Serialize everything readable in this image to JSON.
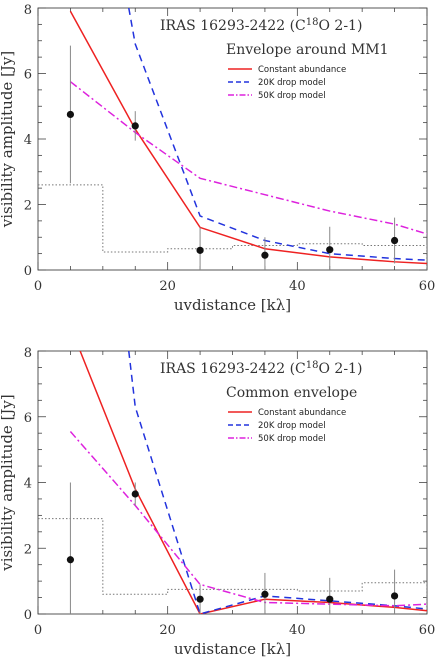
{
  "chart_data": [
    {
      "type": "line",
      "title": "IRAS 16293-2422 (C18O 2-1)",
      "title_parts": {
        "before": "IRAS 16293-2422 (C",
        "sup": "18",
        "after": "O 2-1)"
      },
      "subtitle": "Envelope around MM1",
      "xlabel": "uvdistance [kλ]",
      "ylabel": "visibility amplitude [Jy]",
      "xlim": [
        0,
        60
      ],
      "ylim": [
        0,
        8
      ],
      "xticks": [
        "0",
        "20",
        "40",
        "60"
      ],
      "yticks": [
        "0",
        "2",
        "4",
        "6",
        "8"
      ],
      "legend_position": "top-right",
      "observations": {
        "x": [
          5,
          15,
          25,
          35,
          45,
          55
        ],
        "y": [
          4.75,
          4.4,
          0.6,
          0.45,
          0.62,
          0.9
        ],
        "yerr": [
          2.1,
          0.45,
          0.7,
          0.55,
          0.7,
          0.7
        ]
      },
      "noise_histogram": {
        "edges": [
          0,
          10,
          20,
          30,
          40,
          50,
          60
        ],
        "values": [
          2.6,
          0.55,
          0.65,
          0.75,
          0.8,
          0.75
        ]
      },
      "series": [
        {
          "name": "Constant abundance",
          "color": "#ee2222",
          "dash": "solid",
          "x": [
            5,
            15,
            25,
            35,
            45,
            55,
            60
          ],
          "y": [
            7.9,
            4.3,
            1.3,
            0.65,
            0.4,
            0.25,
            0.2
          ]
        },
        {
          "name": "20K drop model",
          "color": "#2233dd",
          "dash": "dash",
          "x": [
            14,
            15,
            25,
            35,
            45,
            55,
            60
          ],
          "y": [
            8.0,
            6.9,
            1.65,
            0.9,
            0.5,
            0.35,
            0.3
          ]
        },
        {
          "name": "50K drop model",
          "color": "#dd22dd",
          "dash": "dashdot",
          "x": [
            5,
            15,
            25,
            35,
            45,
            55,
            60
          ],
          "y": [
            5.75,
            4.2,
            2.8,
            2.3,
            1.8,
            1.4,
            1.1
          ]
        }
      ]
    },
    {
      "type": "line",
      "title": "IRAS 16293-2422 (C18O 2-1)",
      "title_parts": {
        "before": "IRAS 16293-2422 (C",
        "sup": "18",
        "after": "O 2-1)"
      },
      "subtitle": "Common envelope",
      "xlabel": "uvdistance [kλ]",
      "ylabel": "visibility amplitude [Jy]",
      "xlim": [
        0,
        60
      ],
      "ylim": [
        0,
        8
      ],
      "xticks": [
        "0",
        "20",
        "40",
        "60"
      ],
      "yticks": [
        "0",
        "2",
        "4",
        "6",
        "8"
      ],
      "legend_position": "top-right",
      "observations": {
        "x": [
          5,
          15,
          25,
          35,
          45,
          55
        ],
        "y": [
          1.65,
          3.65,
          0.45,
          0.6,
          0.45,
          0.55
        ],
        "yerr": [
          2.35,
          0.35,
          0.45,
          0.65,
          0.65,
          0.8
        ]
      },
      "noise_histogram": {
        "edges": [
          0,
          10,
          20,
          30,
          40,
          50,
          60
        ],
        "values": [
          2.9,
          0.6,
          0.75,
          0.75,
          0.7,
          0.95
        ]
      },
      "series": [
        {
          "name": "Constant abundance",
          "color": "#ee2222",
          "dash": "solid",
          "x": [
            6.5,
            15,
            25,
            35,
            45,
            55,
            60
          ],
          "y": [
            8.0,
            3.8,
            0.0,
            0.45,
            0.35,
            0.2,
            0.1
          ]
        },
        {
          "name": "20K drop model",
          "color": "#2233dd",
          "dash": "dash",
          "x": [
            14,
            15,
            25,
            35,
            45,
            55,
            60
          ],
          "y": [
            8.0,
            6.3,
            0.0,
            0.55,
            0.4,
            0.25,
            0.15
          ]
        },
        {
          "name": "50K drop model",
          "color": "#dd22dd",
          "dash": "dashdot",
          "x": [
            5,
            15,
            25,
            35,
            45,
            55,
            60
          ],
          "y": [
            5.55,
            3.3,
            0.9,
            0.35,
            0.3,
            0.25,
            0.3
          ]
        }
      ]
    }
  ]
}
